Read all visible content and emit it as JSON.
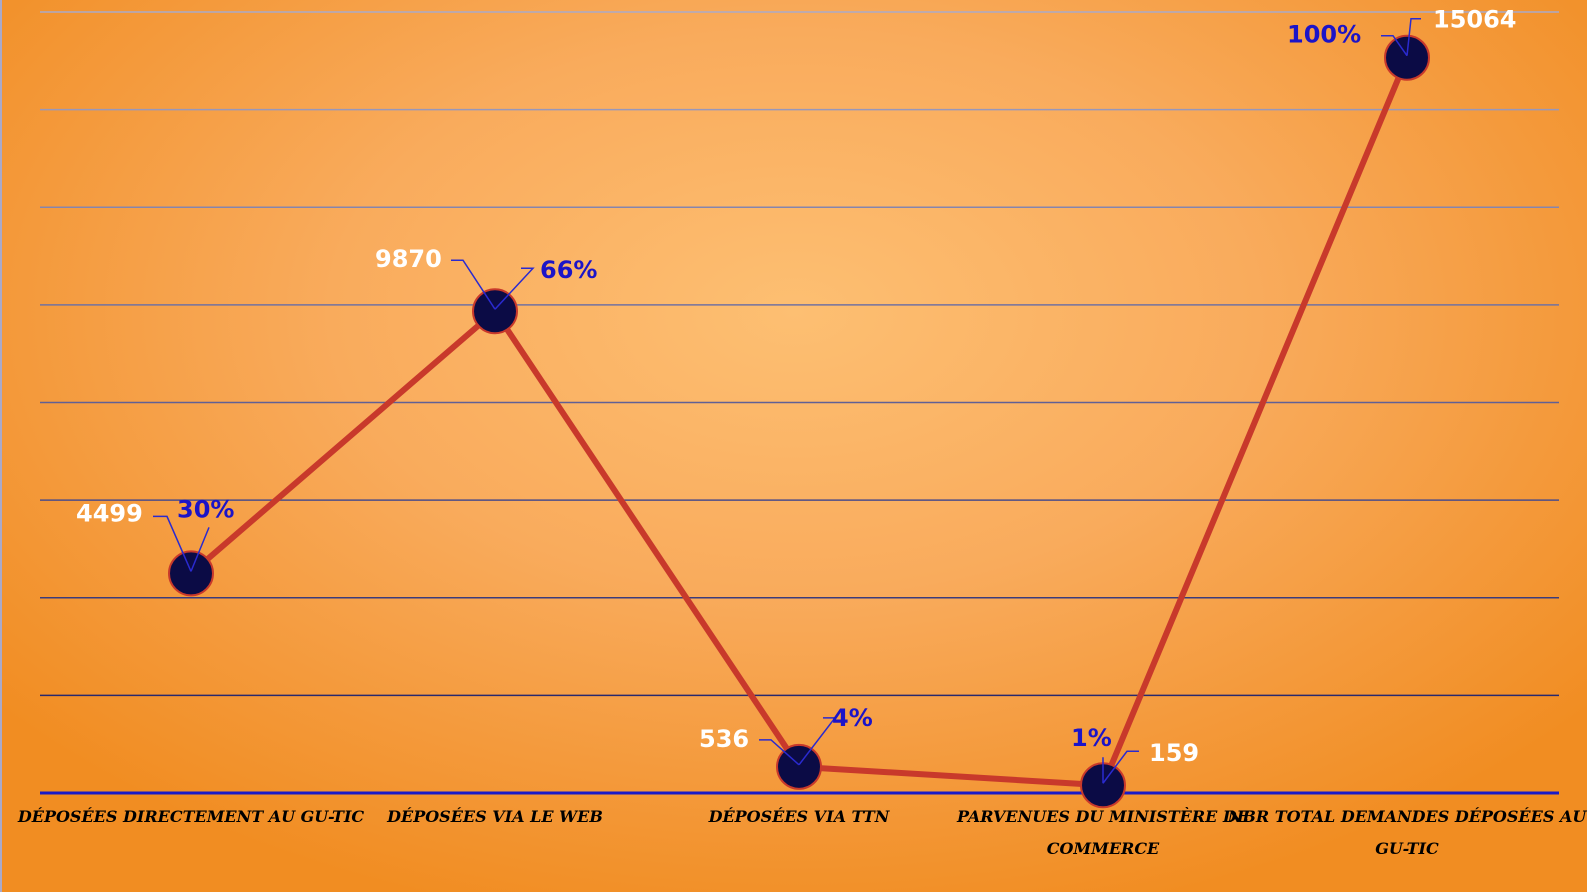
{
  "colors": {
    "line": "#c8392b",
    "marker_fill": "#0b0b45",
    "value_label": "#ffffff",
    "percent_label": "#1c14c8",
    "axis": "#1a1ac8",
    "leader": "#2a2ad0"
  },
  "chart_data": {
    "type": "line",
    "title": "",
    "xlabel": "",
    "ylabel": "",
    "ylim": [
      0,
      16000
    ],
    "grid": true,
    "legend": "none",
    "categories": [
      [
        "DÉPOSÉES DIRECTEMENT AU GU-TIC"
      ],
      [
        "DÉPOSÉES VIA LE WEB"
      ],
      [
        "DÉPOSÉES VIA TTN"
      ],
      [
        "PARVENUES DU MINISTÈRE DE",
        "COMMERCE"
      ],
      [
        "NBR TOTAL DEMANDES DÉPOSÉES AU",
        "GU-TIC"
      ]
    ],
    "series": [
      {
        "values": [
          4499,
          9870,
          536,
          159,
          15064
        ],
        "value_labels": [
          "4499",
          "9870",
          "536",
          "159",
          "15064"
        ],
        "percent_labels": [
          "30%",
          "66%",
          "4%",
          "1%",
          "100%"
        ]
      }
    ]
  }
}
